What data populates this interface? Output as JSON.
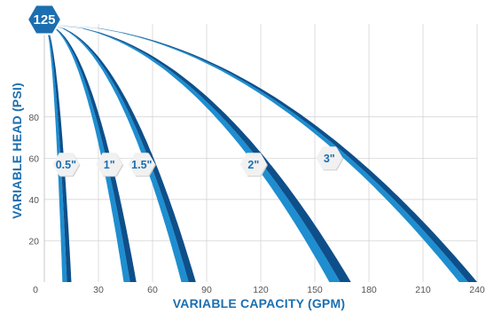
{
  "chart_data": {
    "type": "area",
    "xlabel": "VARIABLE CAPACITY (GPM)",
    "ylabel": "VARIABLE HEAD (PSI)",
    "xlim": [
      0,
      240
    ],
    "ylim": [
      0,
      125
    ],
    "x_ticks": [
      "0",
      "30",
      "60",
      "90",
      "120",
      "150",
      "180",
      "210",
      "240"
    ],
    "x_tick_values": [
      0,
      30,
      60,
      90,
      120,
      150,
      180,
      210,
      240
    ],
    "y_ticks": [
      "20",
      "40",
      "60",
      "80"
    ],
    "y_tick_values": [
      20,
      40,
      60,
      80
    ],
    "max_head_label": "125",
    "max_head": 125,
    "grid": true,
    "series": [
      {
        "name": "0.5\"",
        "band": [
          10,
          15
        ],
        "label_at": [
          12,
          57
        ]
      },
      {
        "name": "1\"",
        "band": [
          44,
          51
        ],
        "label_at": [
          36,
          57
        ]
      },
      {
        "name": "1.5\"",
        "band": [
          76,
          84
        ],
        "label_at": [
          54,
          57
        ]
      },
      {
        "name": "2\"",
        "band": [
          158,
          170
        ],
        "label_at": [
          116,
          57
        ]
      },
      {
        "name": "3\"",
        "band": [
          230,
          240
        ],
        "label_at": [
          158,
          60
        ]
      }
    ],
    "colors": {
      "band_light": "#1e8ed0",
      "band_dark": "#0e4f8a",
      "badge_fill": "#f1f1f1",
      "badge_edge": "#d0d0d0",
      "top_badge_fill": "#1b6fb0",
      "axis_title": "#1b6fb0",
      "grid": "#cfcfcf"
    }
  }
}
